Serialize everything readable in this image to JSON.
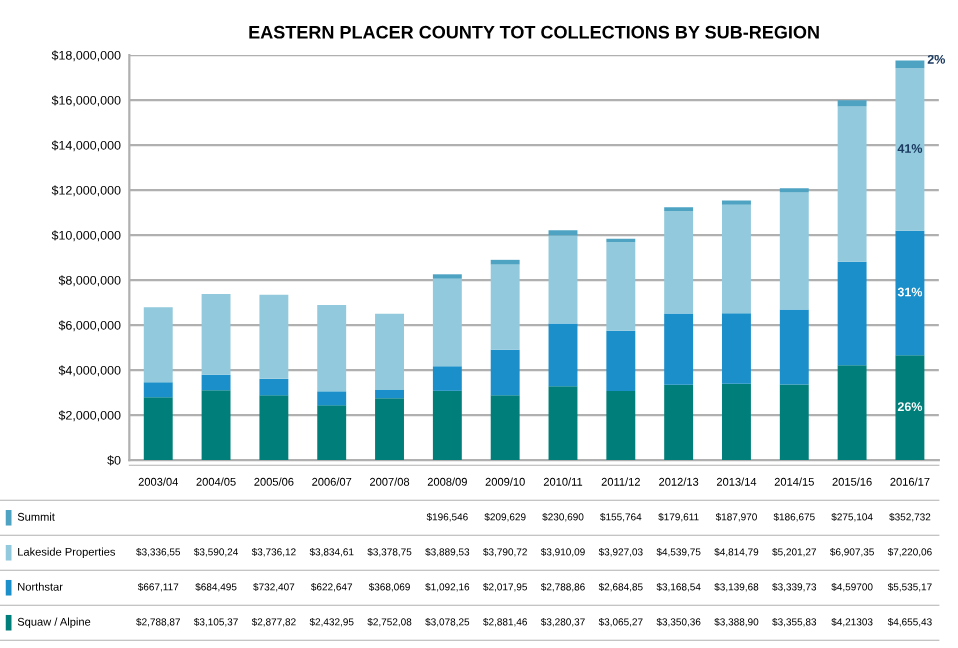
{
  "chart_data": {
    "type": "bar",
    "title": "EASTERN PLACER COUNTY TOT COLLECTIONS BY SUB-REGION",
    "stacked": true,
    "grid": "y",
    "legend": "bottom left",
    "categories": [
      "2003/04",
      "2004/05",
      "2005/06",
      "2006/07",
      "2007/08",
      "2008/09",
      "2009/10",
      "2010/11",
      "2011/12",
      "2012/13",
      "2013/14",
      "2014/15",
      "2015/16",
      "2016/17"
    ],
    "ylim": [
      0,
      18000000
    ],
    "yticks": [
      {
        "value": 0,
        "label": "$0"
      },
      {
        "value": 2000000,
        "label": "$2,000,000"
      },
      {
        "value": 4000000,
        "label": "$4,000,000"
      },
      {
        "value": 6000000,
        "label": "$6,000,000"
      },
      {
        "value": 8000000,
        "label": "$8,000,000"
      },
      {
        "value": 10000000,
        "label": "$10,000,000"
      },
      {
        "value": 12000000,
        "label": "$12,000,000"
      },
      {
        "value": 14000000,
        "label": "$14,000,000"
      },
      {
        "value": 16000000,
        "label": "$16,000,000"
      },
      {
        "value": 18000000,
        "label": "$18,000,000"
      }
    ],
    "series": [
      {
        "name": "Squaw / Alpine",
        "color": "#007f7a",
        "values": [
          2788870,
          3105370,
          2877820,
          2432950,
          2752080,
          3078250,
          2881460,
          3280370,
          3065270,
          3350360,
          3388900,
          3355830,
          4213030,
          4655430
        ],
        "value_labels": [
          "$2,788,87",
          "$3,105,37",
          "$2,877,82",
          "$2,432,95",
          "$2,752,08",
          "$3,078,25",
          "$2,881,46",
          "$3,280,37",
          "$3,065,27",
          "$3,350,36",
          "$3,388,90",
          "$3,355,83",
          "$4,21303",
          "$4,655,43"
        ]
      },
      {
        "name": "Northstar",
        "color": "#1a8fc9",
        "values": [
          667117,
          684495,
          732407,
          622647,
          368069,
          1092160,
          2017950,
          2788860,
          2684850,
          3168540,
          3139680,
          3339730,
          4597000,
          5535170
        ],
        "value_labels": [
          "$667,117",
          "$684,495",
          "$732,407",
          "$622,647",
          "$368,069",
          "$1,092,16",
          "$2,017,95",
          "$2,788,86",
          "$2,684,85",
          "$3,168,54",
          "$3,139,68",
          "$3,339,73",
          "$4,59700",
          "$5,535,17"
        ]
      },
      {
        "name": "Lakeside Properties",
        "color": "#92c9dc",
        "values": [
          3336550,
          3590240,
          3736120,
          3834610,
          3378750,
          3889530,
          3790720,
          3910090,
          3927030,
          4539750,
          4814790,
          5201270,
          6907350,
          7220060
        ],
        "value_labels": [
          "$3,336,55",
          "$3,590,24",
          "$3,736,12",
          "$3,834,61",
          "$3,378,75",
          "$3,889,53",
          "$3,790,72",
          "$3,910,09",
          "$3,927,03",
          "$4,539,75",
          "$4,814,79",
          "$5,201,27",
          "$6,907,35",
          "$7,220,06"
        ]
      },
      {
        "name": "Summit",
        "color": "#4ea3c3",
        "values": [
          null,
          null,
          null,
          null,
          null,
          196546,
          209629,
          230690,
          155764,
          179611,
          187970,
          186675,
          275104,
          352732
        ],
        "value_labels": [
          null,
          null,
          null,
          null,
          null,
          "$196,546",
          "$209,629",
          "$230,690",
          "$155,764",
          "$179,611",
          "$187,970",
          "$186,675",
          "$275,104",
          "$352,732"
        ]
      }
    ],
    "annotations": [
      "26%",
      "31%",
      "41%",
      "2%"
    ]
  }
}
